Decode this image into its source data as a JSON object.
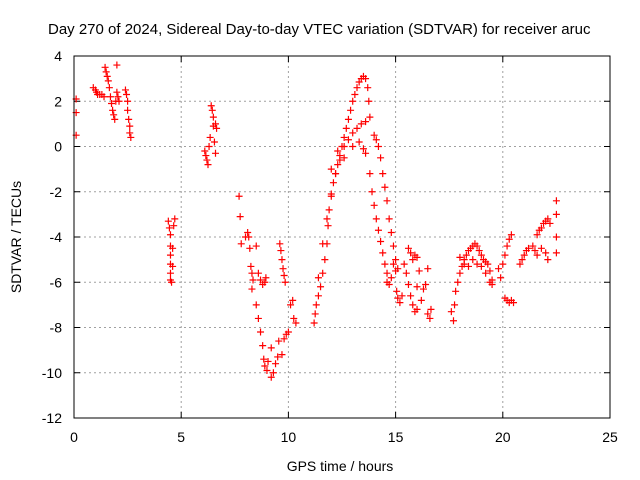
{
  "chart_data": {
    "type": "scatter",
    "title": "Day 270 of 2024, Sidereal Day-to-day VTEC variation (SDTVAR) for receiver aruc",
    "xlabel": "GPS time / hours",
    "ylabel": "SDTVAR / TECUs",
    "xlim": [
      0,
      25
    ],
    "ylim": [
      -12,
      4
    ],
    "xticks": [
      0,
      5,
      10,
      15,
      20,
      25
    ],
    "xtick_labels": [
      "0",
      "5",
      "10",
      "15",
      "20",
      "25"
    ],
    "yticks": [
      -12,
      -10,
      -8,
      -6,
      -4,
      -2,
      0,
      2,
      4
    ],
    "ytick_labels": [
      "-12",
      "-10",
      "-8",
      "-6",
      "-4",
      "-2",
      "0",
      "2",
      "4"
    ],
    "grid": true,
    "marker": "+",
    "color": "#ff0000",
    "series": [
      {
        "name": "SDTVAR",
        "points": [
          [
            0.1,
            2.1
          ],
          [
            0.1,
            1.5
          ],
          [
            0.1,
            0.5
          ],
          [
            0.9,
            2.6
          ],
          [
            1.0,
            2.5
          ],
          [
            1.05,
            2.4
          ],
          [
            1.1,
            2.3
          ],
          [
            1.2,
            2.3
          ],
          [
            1.3,
            2.3
          ],
          [
            1.4,
            2.2
          ],
          [
            1.45,
            3.5
          ],
          [
            1.5,
            3.3
          ],
          [
            1.55,
            3.1
          ],
          [
            1.6,
            2.9
          ],
          [
            1.65,
            2.6
          ],
          [
            1.7,
            2.2
          ],
          [
            1.75,
            1.9
          ],
          [
            1.8,
            1.6
          ],
          [
            1.85,
            1.4
          ],
          [
            1.9,
            1.2
          ],
          [
            1.95,
            2.0
          ],
          [
            2.0,
            3.6
          ],
          [
            2.0,
            2.4
          ],
          [
            2.05,
            2.2
          ],
          [
            2.1,
            2.0
          ],
          [
            2.4,
            2.5
          ],
          [
            2.45,
            2.3
          ],
          [
            2.5,
            2.0
          ],
          [
            2.5,
            1.6
          ],
          [
            2.55,
            1.2
          ],
          [
            2.6,
            0.9
          ],
          [
            2.6,
            0.6
          ],
          [
            2.65,
            0.4
          ],
          [
            4.4,
            -3.3
          ],
          [
            4.45,
            -3.6
          ],
          [
            4.5,
            -3.9
          ],
          [
            4.5,
            -4.4
          ],
          [
            4.5,
            -4.8
          ],
          [
            4.5,
            -5.2
          ],
          [
            4.5,
            -5.6
          ],
          [
            4.5,
            -5.9
          ],
          [
            4.55,
            -6.0
          ],
          [
            4.6,
            -5.3
          ],
          [
            4.6,
            -4.5
          ],
          [
            4.65,
            -3.5
          ],
          [
            4.7,
            -3.2
          ],
          [
            6.1,
            -0.2
          ],
          [
            6.15,
            -0.4
          ],
          [
            6.2,
            -0.6
          ],
          [
            6.25,
            -0.8
          ],
          [
            6.3,
            0.0
          ],
          [
            6.35,
            0.4
          ],
          [
            6.4,
            1.8
          ],
          [
            6.45,
            1.6
          ],
          [
            6.5,
            1.3
          ],
          [
            6.5,
            0.9
          ],
          [
            6.55,
            0.2
          ],
          [
            6.6,
            -0.3
          ],
          [
            6.6,
            1.0
          ],
          [
            6.65,
            0.8
          ],
          [
            7.7,
            -2.2
          ],
          [
            7.75,
            -3.1
          ],
          [
            7.8,
            -4.3
          ],
          [
            8.0,
            -4.0
          ],
          [
            8.1,
            -3.8
          ],
          [
            8.15,
            -4.0
          ],
          [
            8.2,
            -4.5
          ],
          [
            8.25,
            -5.3
          ],
          [
            8.3,
            -5.6
          ],
          [
            8.3,
            -6.3
          ],
          [
            8.35,
            -5.9
          ],
          [
            8.5,
            -4.4
          ],
          [
            8.6,
            -5.6
          ],
          [
            8.7,
            -5.9
          ],
          [
            8.8,
            -6.1
          ],
          [
            8.9,
            -6.0
          ],
          [
            8.95,
            -5.8
          ],
          [
            8.5,
            -7.0
          ],
          [
            8.6,
            -7.6
          ],
          [
            8.7,
            -8.2
          ],
          [
            8.8,
            -8.8
          ],
          [
            8.85,
            -9.4
          ],
          [
            8.9,
            -9.7
          ],
          [
            9.0,
            -9.9
          ],
          [
            9.05,
            -9.5
          ],
          [
            9.2,
            -8.9
          ],
          [
            9.2,
            -10.2
          ],
          [
            9.3,
            -10.0
          ],
          [
            9.4,
            -9.6
          ],
          [
            9.5,
            -9.3
          ],
          [
            9.55,
            -8.6
          ],
          [
            9.6,
            -4.3
          ],
          [
            9.65,
            -4.6
          ],
          [
            9.7,
            -5.0
          ],
          [
            9.75,
            -5.4
          ],
          [
            9.8,
            -5.7
          ],
          [
            9.85,
            -6.0
          ],
          [
            9.7,
            -9.2
          ],
          [
            9.8,
            -8.5
          ],
          [
            9.9,
            -8.3
          ],
          [
            10.0,
            -8.2
          ],
          [
            10.1,
            -7.0
          ],
          [
            10.2,
            -6.8
          ],
          [
            10.25,
            -7.6
          ],
          [
            10.35,
            -7.8
          ],
          [
            11.2,
            -7.8
          ],
          [
            11.25,
            -7.4
          ],
          [
            11.3,
            -7.0
          ],
          [
            11.4,
            -6.6
          ],
          [
            11.5,
            -6.2
          ],
          [
            11.6,
            -5.6
          ],
          [
            11.7,
            -5.0
          ],
          [
            11.8,
            -4.3
          ],
          [
            11.85,
            -3.5
          ],
          [
            11.9,
            -2.8
          ],
          [
            12.0,
            -2.1
          ],
          [
            12.1,
            -1.6
          ],
          [
            12.2,
            -1.2
          ],
          [
            12.3,
            -0.8
          ],
          [
            12.4,
            -0.4
          ],
          [
            12.5,
            0.0
          ],
          [
            12.6,
            0.4
          ],
          [
            12.7,
            0.8
          ],
          [
            12.8,
            1.2
          ],
          [
            12.9,
            1.6
          ],
          [
            13.0,
            2.0
          ],
          [
            13.1,
            2.3
          ],
          [
            13.2,
            2.6
          ],
          [
            13.3,
            2.85
          ],
          [
            13.4,
            3.0
          ],
          [
            13.5,
            3.1
          ],
          [
            13.6,
            3.0
          ],
          [
            13.7,
            2.6
          ],
          [
            13.75,
            2.0
          ],
          [
            11.4,
            -5.8
          ],
          [
            11.6,
            -4.3
          ],
          [
            11.8,
            -3.2
          ],
          [
            12.0,
            -2.2
          ],
          [
            12.2,
            -1.2
          ],
          [
            12.4,
            -0.6
          ],
          [
            12.6,
            0.0
          ],
          [
            12.8,
            0.3
          ],
          [
            13.0,
            0.6
          ],
          [
            13.2,
            0.8
          ],
          [
            13.4,
            1.0
          ],
          [
            13.6,
            1.1
          ],
          [
            13.8,
            1.3
          ],
          [
            12.0,
            -1.0
          ],
          [
            12.3,
            -0.2
          ],
          [
            12.6,
            -0.5
          ],
          [
            13.0,
            0.0
          ],
          [
            13.3,
            0.2
          ],
          [
            13.5,
            -0.1
          ],
          [
            13.6,
            -0.3
          ],
          [
            13.8,
            -1.2
          ],
          [
            13.9,
            -2.0
          ],
          [
            14.0,
            -2.6
          ],
          [
            14.1,
            -3.2
          ],
          [
            14.2,
            -3.7
          ],
          [
            14.3,
            -4.2
          ],
          [
            14.4,
            -4.7
          ],
          [
            14.5,
            -5.2
          ],
          [
            14.6,
            -5.6
          ],
          [
            14.0,
            0.5
          ],
          [
            14.1,
            0.3
          ],
          [
            14.2,
            0.0
          ],
          [
            14.3,
            -0.5
          ],
          [
            14.4,
            -1.2
          ],
          [
            14.5,
            -1.8
          ],
          [
            14.6,
            -2.4
          ],
          [
            14.7,
            -3.2
          ],
          [
            14.8,
            -3.8
          ],
          [
            14.9,
            -4.4
          ],
          [
            15.0,
            -5.0
          ],
          [
            15.1,
            -5.4
          ],
          [
            14.6,
            -6.0
          ],
          [
            14.7,
            -6.1
          ],
          [
            14.8,
            -5.8
          ],
          [
            14.9,
            -5.2
          ],
          [
            15.0,
            -5.5
          ],
          [
            15.05,
            -6.4
          ],
          [
            15.1,
            -6.7
          ],
          [
            15.2,
            -6.9
          ],
          [
            15.3,
            -6.6
          ],
          [
            15.4,
            -5.2
          ],
          [
            15.5,
            -5.6
          ],
          [
            15.6,
            -6.1
          ],
          [
            15.7,
            -6.6
          ],
          [
            15.8,
            -7.0
          ],
          [
            15.9,
            -7.3
          ],
          [
            16.0,
            -7.2
          ],
          [
            15.6,
            -4.5
          ],
          [
            15.7,
            -4.7
          ],
          [
            15.8,
            -5.0
          ],
          [
            15.9,
            -4.8
          ],
          [
            16.0,
            -4.9
          ],
          [
            16.1,
            -5.5
          ],
          [
            16.3,
            -6.3
          ],
          [
            16.4,
            -6.1
          ],
          [
            16.5,
            -5.4
          ],
          [
            16.0,
            -6.2
          ],
          [
            16.2,
            -6.8
          ],
          [
            16.5,
            -7.4
          ],
          [
            16.6,
            -7.6
          ],
          [
            16.65,
            -7.2
          ],
          [
            17.6,
            -7.3
          ],
          [
            17.7,
            -7.7
          ],
          [
            17.75,
            -7.0
          ],
          [
            17.8,
            -6.4
          ],
          [
            17.9,
            -6.0
          ],
          [
            18.0,
            -5.6
          ],
          [
            18.1,
            -5.3
          ],
          [
            18.2,
            -5.0
          ],
          [
            18.3,
            -4.8
          ],
          [
            18.4,
            -4.6
          ],
          [
            18.5,
            -4.5
          ],
          [
            18.6,
            -4.4
          ],
          [
            18.7,
            -4.3
          ],
          [
            18.8,
            -4.4
          ],
          [
            18.9,
            -4.6
          ],
          [
            19.0,
            -4.8
          ],
          [
            19.1,
            -5.0
          ],
          [
            19.2,
            -5.1
          ],
          [
            19.3,
            -5.2
          ],
          [
            19.4,
            -5.5
          ],
          [
            19.5,
            -5.9
          ],
          [
            18.0,
            -4.9
          ],
          [
            18.2,
            -5.2
          ],
          [
            18.4,
            -5.3
          ],
          [
            18.6,
            -5.0
          ],
          [
            18.8,
            -5.2
          ],
          [
            19.0,
            -5.3
          ],
          [
            19.2,
            -5.6
          ],
          [
            19.4,
            -6.0
          ],
          [
            19.5,
            -6.1
          ],
          [
            19.8,
            -5.4
          ],
          [
            19.9,
            -5.8
          ],
          [
            20.0,
            -5.2
          ],
          [
            20.1,
            -4.8
          ],
          [
            20.2,
            -4.4
          ],
          [
            20.3,
            -4.1
          ],
          [
            20.4,
            -3.9
          ],
          [
            20.1,
            -6.7
          ],
          [
            20.2,
            -6.8
          ],
          [
            20.3,
            -6.9
          ],
          [
            20.4,
            -6.8
          ],
          [
            20.5,
            -6.9
          ],
          [
            20.8,
            -5.2
          ],
          [
            20.9,
            -5.0
          ],
          [
            21.0,
            -4.8
          ],
          [
            21.1,
            -4.6
          ],
          [
            21.2,
            -4.5
          ],
          [
            21.4,
            -4.4
          ],
          [
            21.5,
            -4.6
          ],
          [
            21.6,
            -4.8
          ],
          [
            21.8,
            -4.5
          ],
          [
            22.0,
            -4.7
          ],
          [
            22.1,
            -5.0
          ],
          [
            21.6,
            -3.9
          ],
          [
            21.7,
            -3.7
          ],
          [
            21.8,
            -3.6
          ],
          [
            21.9,
            -3.4
          ],
          [
            22.0,
            -3.3
          ],
          [
            22.1,
            -3.2
          ],
          [
            22.2,
            -3.4
          ],
          [
            22.5,
            -2.4
          ],
          [
            22.5,
            -3.0
          ],
          [
            22.5,
            -4.0
          ],
          [
            22.5,
            -4.7
          ]
        ]
      }
    ]
  }
}
